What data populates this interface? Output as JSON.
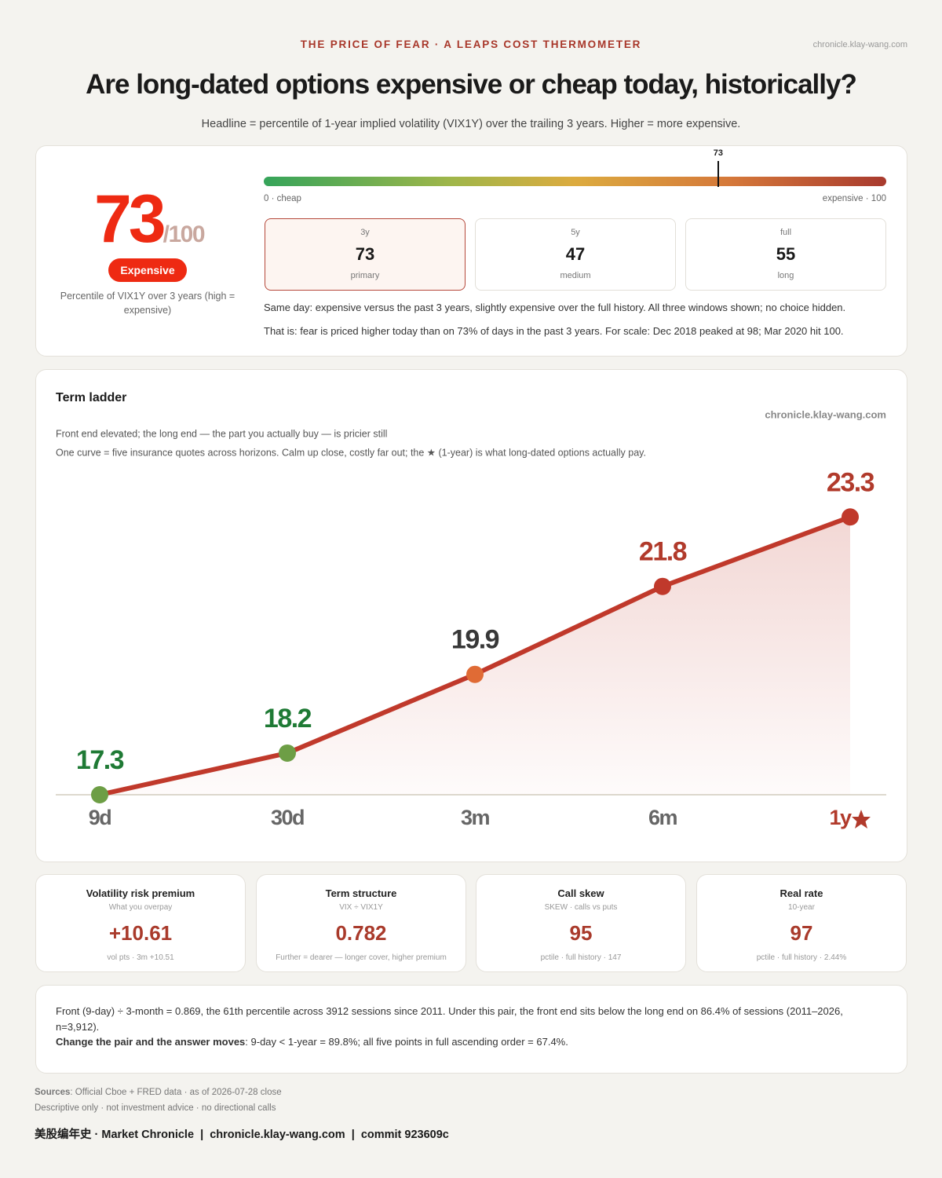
{
  "header": {
    "kicker": "THE PRICE OF FEAR · A LEAPS COST THERMOMETER",
    "site": "chronicle.klay-wang.com",
    "title": "Are long-dated options expensive or cheap today, historically?",
    "subtitle": "Headline = percentile of 1-year implied volatility (VIX1Y) over the trailing 3 years. Higher = more expensive."
  },
  "score": {
    "value": 73,
    "suffix": "/100",
    "badge": "Expensive",
    "caption": "Percentile of VIX1Y over 3 years (high = expensive)",
    "xlim": [
      0,
      100
    ],
    "xticks": [
      {
        "value": 0,
        "label": "0 · cheap"
      },
      {
        "value": 100,
        "label": "expensive · 100"
      }
    ]
  },
  "windows": [
    {
      "label": "3y",
      "value": 73,
      "note": "primary"
    },
    {
      "label": "5y",
      "value": 47,
      "note": "medium"
    },
    {
      "label": "full",
      "value": 55,
      "note": "long"
    }
  ],
  "notes": [
    "Same day: expensive versus the past 3 years, slightly expensive over the full history. All three windows shown; no choice hidden.",
    "That is: fear is priced higher today than on 73% of days in the past 3 years. For scale: Dec 2018 peaked at 98; Mar 2020 hit 100."
  ],
  "chart_data": {
    "type": "line",
    "title": "Term ladder",
    "source": "chronicle.klay-wang.com",
    "subtitle": "Front end elevated; the long end — the part you actually buy — is pricier still",
    "description": "One curve = five insurance quotes across horizons. Calm up close, costly far out; the ★ (1-year) is what long-dated options actually pay.",
    "categories": [
      "9d",
      "30d",
      "3m",
      "6m",
      "1y"
    ],
    "values": [
      17.3,
      18.2,
      19.9,
      21.8,
      23.3
    ],
    "ylim": [
      17.3,
      24
    ],
    "color": "#c0392b",
    "point_colors": [
      "#6d9e45",
      "#6d9e45",
      "#e06b35",
      "#c0392b",
      "#c0392b"
    ],
    "label_colors": [
      "#1f7a35",
      "#1f7a35",
      "#383838",
      "#b13a2b",
      "#b13a2b"
    ],
    "category_colors": [
      "#666666",
      "#666666",
      "#666666",
      "#666666",
      "#b13a2b"
    ]
  },
  "metrics": [
    {
      "title": "Volatility risk premium",
      "subtitle": "What you overpay",
      "value": "+10.61",
      "foot": "vol pts · 3m +10.51"
    },
    {
      "title": "Term structure",
      "subtitle": "VIX ÷ VIX1Y",
      "value": "0.782",
      "foot": "Further = dearer — longer cover, higher premium"
    },
    {
      "title": "Call skew",
      "subtitle": "SKEW · calls vs puts",
      "value": "95",
      "foot": "pctile · full history · 147"
    },
    {
      "title": "Real rate",
      "subtitle": "10-year",
      "value": "97",
      "foot": "pctile · full history · 2.44%"
    }
  ],
  "analysis": {
    "text": "Front (9-day) ÷ 3-month = 0.869, the 61th percentile across 3912 sessions since 2011. Under this pair, the front end sits below the long end on 86.4% of sessions (2011–2026, n=3,912).",
    "lead": "Change the pair and the answer moves",
    "rest": ": 9-day < 1-year = 89.8%; all five points in full ascending order = 67.4%."
  },
  "footer": {
    "sources_label": "Sources",
    "sources_text": ": Official Cboe + FRED data · as of 2026-07-28 close",
    "disclaimer": "Descriptive only · not investment advice · no directional calls",
    "brand": "美股编年史 · Market Chronicle  |  chronicle.klay-wang.com  |  commit 923609c"
  }
}
